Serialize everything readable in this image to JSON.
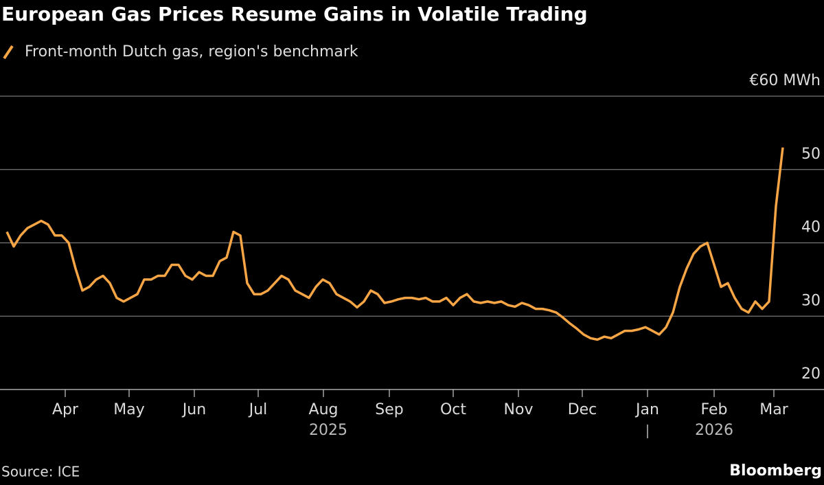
{
  "chart_data": {
    "type": "line",
    "title": "European Gas Prices Resume Gains in Volatile Trading",
    "series": [
      {
        "name": "Front-month Dutch gas, region's benchmark",
        "color": "#f7a545",
        "values": [
          41.5,
          39.5,
          41,
          42,
          42.5,
          43,
          42.5,
          41,
          41,
          40,
          36.5,
          33.5,
          34,
          35,
          35.5,
          34.5,
          32.5,
          32,
          32.5,
          33,
          35,
          35,
          35.5,
          35.5,
          37,
          37,
          35.5,
          35,
          36,
          35.5,
          35.5,
          37.5,
          38,
          41.5,
          41,
          34.5,
          33,
          33,
          33.5,
          34.5,
          35.5,
          35,
          33.5,
          33,
          32.5,
          34,
          35,
          34.5,
          33,
          32.5,
          32,
          31.2,
          32,
          33.5,
          33,
          31.8,
          32,
          32.3,
          32.5,
          32.5,
          32.3,
          32.5,
          32,
          32,
          32.5,
          31.5,
          32.5,
          33,
          32,
          31.8,
          32,
          31.8,
          32,
          31.5,
          31.3,
          31.8,
          31.5,
          31,
          31,
          30.8,
          30.5,
          29.8,
          29,
          28.3,
          27.5,
          27,
          26.8,
          27.2,
          27,
          27.5,
          28,
          28,
          28.2,
          28.5,
          28,
          27.5,
          28.5,
          30.5,
          34,
          36.5,
          38.5,
          39.5,
          40,
          37,
          34,
          34.5,
          32.5,
          31,
          30.5,
          32,
          31,
          32,
          45,
          53
        ]
      }
    ],
    "xlim": [
      0,
      113
    ],
    "xticks": [
      {
        "value": 8.5,
        "label": "Apr"
      },
      {
        "value": 17.8,
        "label": "May"
      },
      {
        "value": 27.3,
        "label": "Jun"
      },
      {
        "value": 36.6,
        "label": "Jul"
      },
      {
        "value": 46.1,
        "label": "Aug"
      },
      {
        "value": 55.7,
        "label": "Sep"
      },
      {
        "value": 65,
        "label": "Oct"
      },
      {
        "value": 74.5,
        "label": "Nov"
      },
      {
        "value": 83.8,
        "label": "Dec"
      },
      {
        "value": 93.3,
        "label": "Jan"
      },
      {
        "value": 103,
        "label": "Feb"
      },
      {
        "value": 111.7,
        "label": "Mar"
      }
    ],
    "x_year_labels": [
      "2025",
      "2026"
    ],
    "ylim": [
      20,
      60
    ],
    "yticks": [
      20,
      30,
      40,
      50,
      {
        "value": 60,
        "label": "€60 MWh"
      }
    ],
    "grid": true,
    "source": "Source: ICE",
    "brand": "Bloomberg"
  }
}
